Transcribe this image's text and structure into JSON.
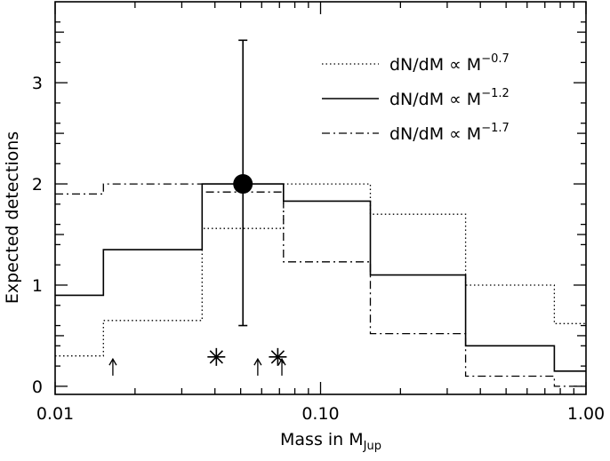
{
  "chart_data": {
    "type": "line",
    "title": "",
    "xlabel_main": "Mass in M",
    "xlabel_sub": "Jup",
    "ylabel": "Expected detections",
    "xscale": "log",
    "xlim": [
      0.01,
      1.0
    ],
    "ylim": [
      -0.08,
      3.8
    ],
    "grid": false,
    "legend_position": "top-right",
    "x_ticks": [
      {
        "value": 0.01,
        "label": "0.01"
      },
      {
        "value": 0.1,
        "label": "0.10"
      },
      {
        "value": 1.0,
        "label": "1.00"
      }
    ],
    "y_ticks": [
      {
        "value": 0,
        "label": "0"
      },
      {
        "value": 1,
        "label": "1"
      },
      {
        "value": 2,
        "label": "2"
      },
      {
        "value": 3,
        "label": "3"
      }
    ],
    "series": [
      {
        "name_base": "dN/dM ∝ M",
        "exponent": "−0.7",
        "style": "dotted",
        "bin_edges": [
          0.01,
          0.0152,
          0.0358,
          0.0725,
          0.154,
          0.352,
          0.76,
          1.0
        ],
        "values": [
          0.3,
          0.65,
          1.56,
          2.0,
          1.7,
          1.0,
          0.62
        ]
      },
      {
        "name_base": "dN/dM ∝ M",
        "exponent": "−1.2",
        "style": "solid",
        "bin_edges": [
          0.01,
          0.0152,
          0.0358,
          0.0725,
          0.154,
          0.352,
          0.76,
          1.0
        ],
        "values": [
          0.9,
          1.35,
          2.0,
          1.83,
          1.1,
          0.4,
          0.15
        ]
      },
      {
        "name_base": "dN/dM ∝ M",
        "exponent": "−1.7",
        "style": "dashdot",
        "bin_edges": [
          0.01,
          0.0152,
          0.0358,
          0.0725,
          0.154,
          0.352,
          0.76,
          1.0
        ],
        "values": [
          1.9,
          2.0,
          1.92,
          1.23,
          0.52,
          0.1,
          0.0
        ]
      }
    ],
    "point": {
      "x": 0.051,
      "y": 2.0,
      "y_low": 0.6,
      "y_high": 3.42
    },
    "asterisks": [
      {
        "x": 0.0405,
        "y": 0.29
      },
      {
        "x": 0.069,
        "y": 0.29
      }
    ],
    "arrows": [
      {
        "x": 0.0165,
        "y_from": 0.0,
        "y_to": 0.27
      },
      {
        "x": 0.058,
        "y_from": 0.0,
        "y_to": 0.27
      },
      {
        "x": 0.0715,
        "y_from": 0.0,
        "y_to": 0.27
      }
    ]
  }
}
